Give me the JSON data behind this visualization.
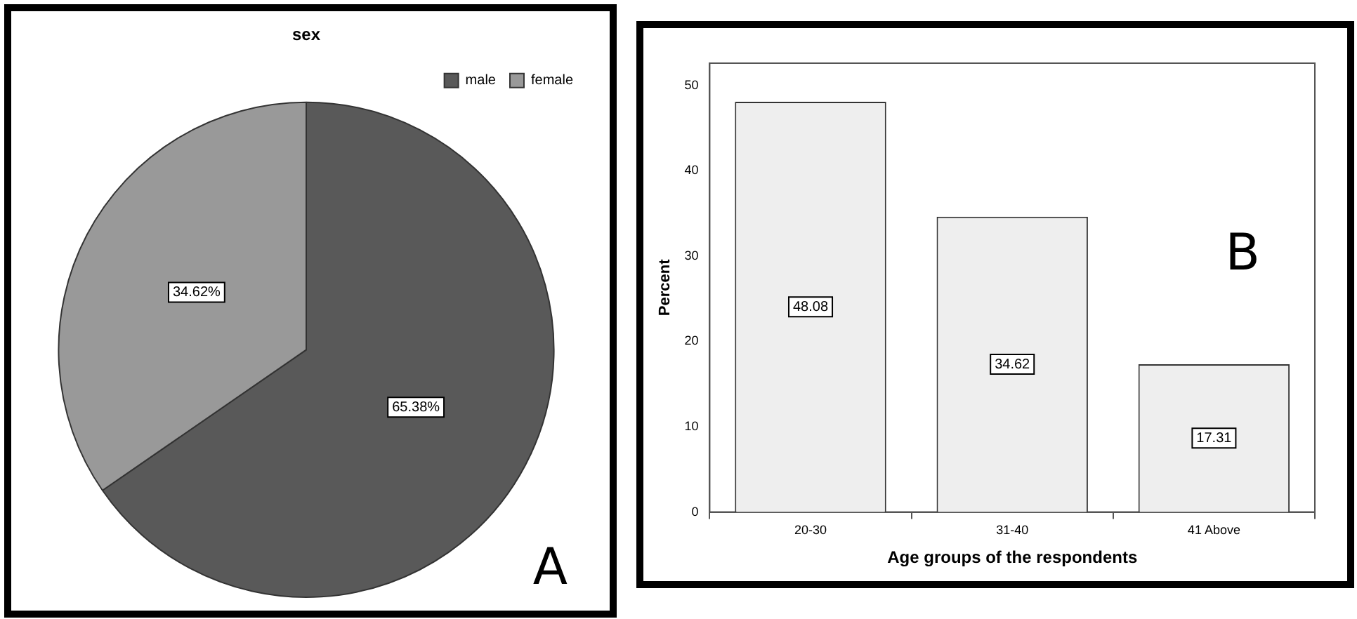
{
  "chart_data": [
    {
      "type": "pie",
      "title": "sex",
      "categories": [
        "male",
        "female"
      ],
      "values": [
        65.38,
        34.62
      ],
      "colors": [
        "#595959",
        "#999999"
      ],
      "value_labels": [
        "65.38%",
        "34.62%"
      ],
      "legend": "top right",
      "annotations": [
        "A"
      ]
    },
    {
      "type": "bar",
      "xlabel": "Age groups of the respondents",
      "ylabel": "Percent",
      "categories": [
        "20-30",
        "31-40",
        "41 Above"
      ],
      "values": [
        48.08,
        34.62,
        17.31
      ],
      "color": "#eeeeee",
      "ylim": [
        0,
        52.6
      ],
      "yticks": [
        0,
        10,
        20,
        30,
        40,
        50
      ],
      "grid": false,
      "data_labels": true,
      "legend": false,
      "annotations": [
        "B"
      ]
    }
  ]
}
